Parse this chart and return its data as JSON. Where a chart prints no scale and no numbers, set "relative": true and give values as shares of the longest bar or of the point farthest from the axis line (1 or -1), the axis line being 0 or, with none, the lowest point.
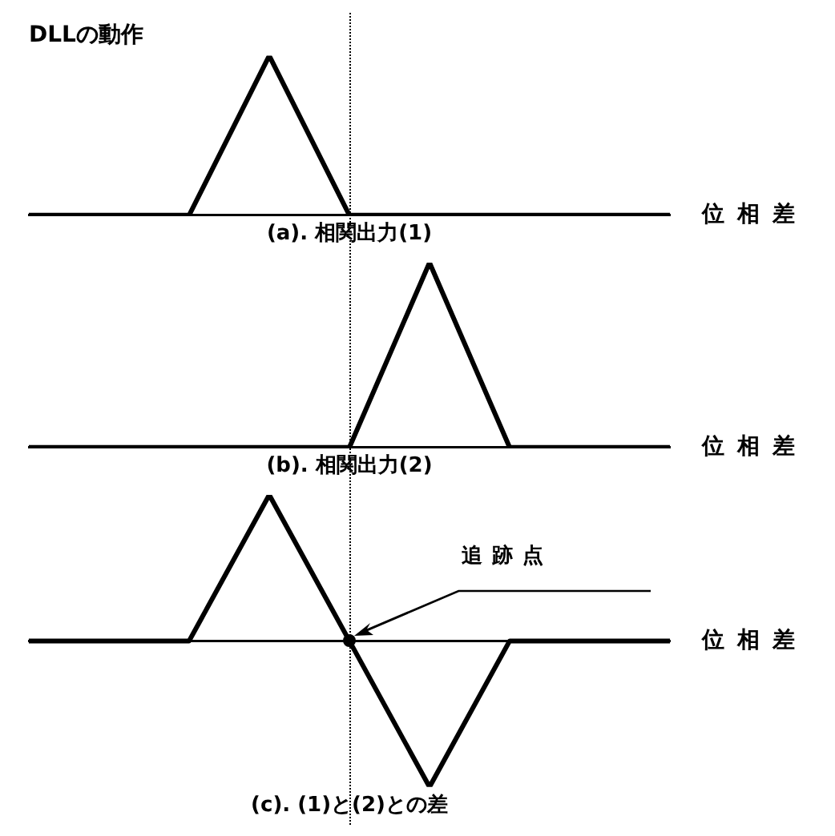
{
  "chart_data": [
    {
      "type": "line",
      "title": "DLLの動作",
      "subtitle": "(a). 相関出力(1)",
      "xlabel": "位相差",
      "categories": [
        null,
        null,
        null,
        null,
        null,
        null,
        null,
        null,
        null
      ],
      "relative": true,
      "grid": false,
      "legend": false,
      "marker": "none",
      "series": [
        {
          "color": "#000000",
          "values": [
            0,
            0,
            0,
            1,
            0,
            0,
            0,
            0,
            0
          ]
        }
      ]
    },
    {
      "type": "line",
      "subtitle": "(b). 相関出力(2)",
      "xlabel": "位相差",
      "categories": [
        null,
        null,
        null,
        null,
        null,
        null,
        null,
        null,
        null
      ],
      "relative": true,
      "grid": false,
      "legend": false,
      "marker": "none",
      "series": [
        {
          "color": "#000000",
          "values": [
            0,
            0,
            0,
            0,
            0,
            1,
            0,
            0,
            0
          ]
        }
      ]
    },
    {
      "type": "line",
      "subtitle": "(c). (1)と(2)との差",
      "xlabel": "位相差",
      "categories": [
        null,
        null,
        null,
        null,
        null,
        null,
        null,
        null,
        null
      ],
      "relative": true,
      "grid": false,
      "legend": false,
      "marker": "none",
      "series": [
        {
          "color": "#000000",
          "values": [
            0,
            0,
            0,
            1,
            0,
            -1,
            0,
            0,
            0
          ]
        }
      ],
      "annotations": [
        "追跡点"
      ]
    }
  ]
}
